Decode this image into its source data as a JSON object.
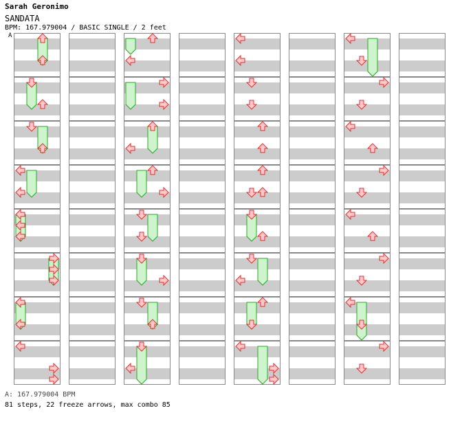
{
  "header": {
    "artist": "Sarah Geronimo",
    "title": "SANDATA",
    "info": "BPM: 167.979004 / BASIC SINGLE / 2 feet"
  },
  "bpm_marker": {
    "label": "A"
  },
  "footer": {
    "bpm_line": "A: 167.979004 BPM",
    "stats": "81 steps, 22 freeze arrows, max combo 85"
  },
  "colors": {
    "arrow_fill": "#ffc8c8",
    "arrow_stroke": "#e03030",
    "freeze_fill": "#ccf5cc",
    "freeze_stroke": "#30a030",
    "stripe": "#cccccc"
  },
  "chart": {
    "measures_per_column": 8,
    "beats_per_measure": 4,
    "arrows": [
      [
        0,
        0.25,
        "up"
      ],
      [
        0,
        2.25,
        "up"
      ],
      [
        0,
        4.25,
        "down"
      ],
      [
        0,
        6.25,
        "up"
      ],
      [
        0,
        8.25,
        "down"
      ],
      [
        0,
        10.25,
        "up"
      ],
      [
        0,
        12.25,
        "left"
      ],
      [
        0,
        14.25,
        "left"
      ],
      [
        0,
        16.25,
        "left"
      ],
      [
        0,
        17.25,
        "left"
      ],
      [
        0,
        18.25,
        "left"
      ],
      [
        0,
        20.25,
        "right"
      ],
      [
        0,
        21.25,
        "right"
      ],
      [
        0,
        22.25,
        "right"
      ],
      [
        0,
        24.25,
        "left"
      ],
      [
        0,
        26.25,
        "left"
      ],
      [
        0,
        28.25,
        "left"
      ],
      [
        0,
        30.25,
        "right"
      ],
      [
        0,
        31.25,
        "right"
      ],
      [
        1,
        0.25,
        "up"
      ],
      [
        1,
        2.25,
        "left"
      ],
      [
        1,
        4.25,
        "right"
      ],
      [
        1,
        6.25,
        "right"
      ],
      [
        1,
        8.25,
        "up"
      ],
      [
        1,
        10.25,
        "left"
      ],
      [
        1,
        12.25,
        "up"
      ],
      [
        1,
        14.25,
        "right"
      ],
      [
        1,
        16.25,
        "down"
      ],
      [
        1,
        18.25,
        "down"
      ],
      [
        1,
        20.25,
        "down"
      ],
      [
        1,
        22.25,
        "right"
      ],
      [
        1,
        24.25,
        "down"
      ],
      [
        1,
        26.25,
        "up"
      ],
      [
        1,
        28.25,
        "down"
      ],
      [
        1,
        30.25,
        "left"
      ],
      [
        2,
        0.25,
        "left"
      ],
      [
        2,
        2.25,
        "left"
      ],
      [
        2,
        4.25,
        "down"
      ],
      [
        2,
        6.25,
        "down"
      ],
      [
        2,
        8.25,
        "up"
      ],
      [
        2,
        10.25,
        "up"
      ],
      [
        2,
        12.25,
        "up"
      ],
      [
        2,
        14.25,
        "down"
      ],
      [
        2,
        14.25,
        "up"
      ],
      [
        2,
        16.25,
        "down"
      ],
      [
        2,
        18.25,
        "up"
      ],
      [
        2,
        20.25,
        "down"
      ],
      [
        2,
        22.25,
        "left"
      ],
      [
        2,
        24.25,
        "up"
      ],
      [
        2,
        26.25,
        "down"
      ],
      [
        2,
        28.25,
        "left"
      ],
      [
        2,
        30.25,
        "right"
      ],
      [
        2,
        31.25,
        "right"
      ],
      [
        3,
        0.25,
        "left"
      ],
      [
        3,
        2.25,
        "down"
      ],
      [
        3,
        4.25,
        "right"
      ],
      [
        3,
        6.25,
        "down"
      ],
      [
        3,
        8.25,
        "left"
      ],
      [
        3,
        10.25,
        "up"
      ],
      [
        3,
        12.25,
        "right"
      ],
      [
        3,
        14.25,
        "down"
      ],
      [
        3,
        16.25,
        "left"
      ],
      [
        3,
        18.25,
        "up"
      ],
      [
        3,
        20.25,
        "right"
      ],
      [
        3,
        22.25,
        "down"
      ],
      [
        3,
        24.25,
        "left"
      ],
      [
        3,
        26.25,
        "down"
      ],
      [
        3,
        28.25,
        "right"
      ],
      [
        3,
        30.25,
        "down"
      ]
    ],
    "freezes": [
      [
        0,
        0.25,
        2.25,
        "up"
      ],
      [
        0,
        4.25,
        6.25,
        "down"
      ],
      [
        0,
        8.25,
        10.25,
        "up"
      ],
      [
        0,
        12.25,
        14.25,
        "down"
      ],
      [
        0,
        16.25,
        18.25,
        "left"
      ],
      [
        0,
        20.25,
        22.25,
        "right"
      ],
      [
        0,
        24.25,
        26.25,
        "left"
      ],
      [
        1,
        0.25,
        1.25,
        "left"
      ],
      [
        1,
        4.25,
        6.25,
        "left"
      ],
      [
        1,
        8.25,
        10.25,
        "up"
      ],
      [
        1,
        12.25,
        14.25,
        "down"
      ],
      [
        1,
        16.25,
        18.25,
        "up"
      ],
      [
        1,
        20.25,
        22.25,
        "down"
      ],
      [
        1,
        24.25,
        26.25,
        "up"
      ],
      [
        1,
        28.25,
        31.25,
        "down"
      ],
      [
        2,
        16.25,
        18.25,
        "down"
      ],
      [
        2,
        20.25,
        22.25,
        "up"
      ],
      [
        2,
        24.25,
        26.25,
        "down"
      ],
      [
        2,
        28.25,
        31.25,
        "up"
      ],
      [
        3,
        0.25,
        3.25,
        "up"
      ],
      [
        3,
        0.25,
        3.25,
        "up"
      ],
      [
        3,
        24.25,
        27.25,
        "down"
      ]
    ]
  }
}
